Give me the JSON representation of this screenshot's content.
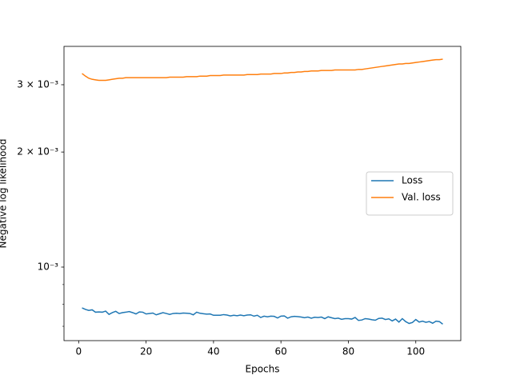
{
  "chart_data": {
    "type": "line",
    "xlabel": "Epochs",
    "ylabel": "Negative log likelihood",
    "x": [
      1,
      2,
      3,
      4,
      5,
      6,
      7,
      8,
      9,
      10,
      11,
      12,
      13,
      14,
      15,
      16,
      17,
      18,
      19,
      20,
      21,
      22,
      23,
      24,
      25,
      26,
      27,
      28,
      29,
      30,
      31,
      32,
      33,
      34,
      35,
      36,
      37,
      38,
      39,
      40,
      41,
      42,
      43,
      44,
      45,
      46,
      47,
      48,
      49,
      50,
      51,
      52,
      53,
      54,
      55,
      56,
      57,
      58,
      59,
      60,
      61,
      62,
      63,
      64,
      65,
      66,
      67,
      68,
      69,
      70,
      71,
      72,
      73,
      74,
      75,
      76,
      77,
      78,
      79,
      80,
      81,
      82,
      83,
      84,
      85,
      86,
      87,
      88,
      89,
      90,
      91,
      92,
      93,
      94,
      95,
      96,
      97,
      98,
      99,
      100,
      101,
      102,
      103,
      104,
      105,
      106,
      107,
      108
    ],
    "series": [
      {
        "name": "Loss",
        "color": "#1f77b4",
        "values": [
          0.000782,
          0.000775,
          0.00077,
          0.000773,
          0.000762,
          0.000763,
          0.000762,
          0.000767,
          0.000752,
          0.00076,
          0.000766,
          0.000756,
          0.00076,
          0.000762,
          0.000765,
          0.00076,
          0.000754,
          0.000763,
          0.000762,
          0.000754,
          0.000756,
          0.000758,
          0.00075,
          0.000755,
          0.00076,
          0.000756,
          0.000752,
          0.000756,
          0.000757,
          0.000756,
          0.000758,
          0.000757,
          0.000756,
          0.00075,
          0.000762,
          0.000757,
          0.000755,
          0.000753,
          0.000754,
          0.000748,
          0.000748,
          0.000748,
          0.000751,
          0.000749,
          0.000745,
          0.000748,
          0.000746,
          0.000749,
          0.000746,
          0.000749,
          0.00075,
          0.000744,
          0.000748,
          0.000738,
          0.000744,
          0.000741,
          0.000744,
          0.000743,
          0.000736,
          0.000744,
          0.000745,
          0.000735,
          0.000741,
          0.000743,
          0.000742,
          0.00074,
          0.000737,
          0.00074,
          0.000735,
          0.000739,
          0.000738,
          0.00074,
          0.000733,
          0.000741,
          0.000737,
          0.000733,
          0.000735,
          0.00073,
          0.000733,
          0.000733,
          0.000731,
          0.000738,
          0.000725,
          0.000727,
          0.000733,
          0.000731,
          0.000728,
          0.000726,
          0.000734,
          0.000735,
          0.000729,
          0.000732,
          0.000723,
          0.000731,
          0.000718,
          0.000733,
          0.00072,
          0.000712,
          0.000716,
          0.000729,
          0.000718,
          0.000722,
          0.000717,
          0.00072,
          0.000713,
          0.000722,
          0.00072,
          0.000709
        ]
      },
      {
        "name": "Val. loss",
        "color": "#ff7f0e",
        "values": [
          0.00321,
          0.00316,
          0.00312,
          0.0031,
          0.00309,
          0.00308,
          0.00308,
          0.00308,
          0.00309,
          0.0031,
          0.00311,
          0.00312,
          0.00312,
          0.00313,
          0.00313,
          0.00313,
          0.00313,
          0.00313,
          0.00313,
          0.00313,
          0.00313,
          0.00313,
          0.00313,
          0.00313,
          0.00313,
          0.00313,
          0.00314,
          0.00314,
          0.00314,
          0.00314,
          0.00314,
          0.00315,
          0.00315,
          0.00315,
          0.00315,
          0.00316,
          0.00316,
          0.00316,
          0.00317,
          0.00317,
          0.00317,
          0.00317,
          0.00318,
          0.00318,
          0.00318,
          0.00318,
          0.00318,
          0.00318,
          0.00318,
          0.00319,
          0.00319,
          0.00319,
          0.00319,
          0.0032,
          0.0032,
          0.0032,
          0.0032,
          0.00321,
          0.00321,
          0.00321,
          0.00322,
          0.00322,
          0.00323,
          0.00323,
          0.00324,
          0.00324,
          0.00325,
          0.00325,
          0.00326,
          0.00326,
          0.00326,
          0.00327,
          0.00327,
          0.00327,
          0.00327,
          0.00328,
          0.00328,
          0.00328,
          0.00328,
          0.00328,
          0.00328,
          0.00328,
          0.00329,
          0.00329,
          0.0033,
          0.00331,
          0.00332,
          0.00333,
          0.00334,
          0.00335,
          0.00336,
          0.00337,
          0.00338,
          0.00339,
          0.0034,
          0.0034,
          0.00341,
          0.00341,
          0.00342,
          0.00343,
          0.00344,
          0.00345,
          0.00346,
          0.00347,
          0.00348,
          0.00349,
          0.00349,
          0.0035
        ]
      }
    ],
    "xlim": [
      -4.35,
      113.35
    ],
    "xticks": [
      0,
      20,
      40,
      60,
      80,
      100
    ],
    "ylim": [
      0.000642,
      0.00378
    ],
    "yscale": "log",
    "yticks": [
      {
        "value": 0.001,
        "label": "10⁻³"
      },
      {
        "value": 0.002,
        "label": "2 × 10⁻³"
      },
      {
        "value": 0.003,
        "label": "3 × 10⁻³"
      }
    ],
    "yminorticks": [
      0.0007,
      0.0008,
      0.0009
    ],
    "legend": "center right",
    "grid": false
  }
}
